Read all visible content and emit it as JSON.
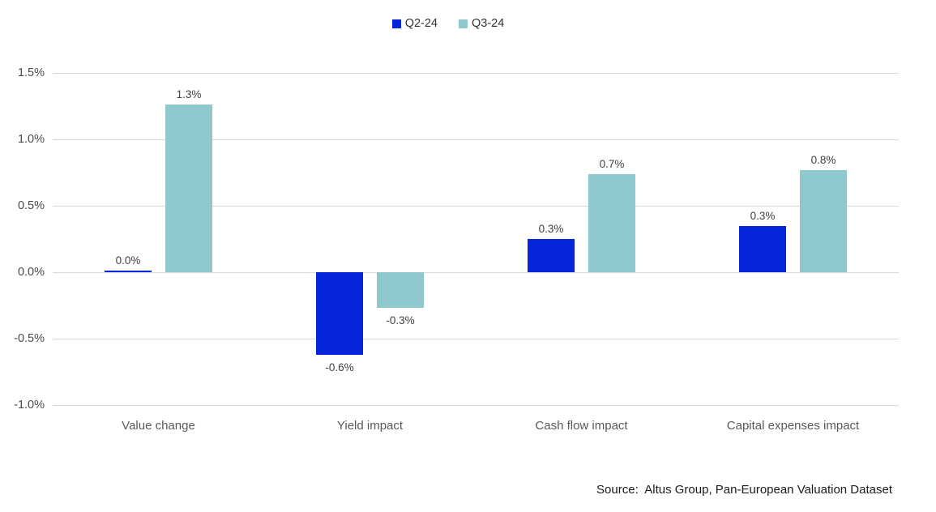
{
  "legend": {
    "items": [
      {
        "label": "Q2-24",
        "color": "#0826d9"
      },
      {
        "label": "Q3-24",
        "color": "#8fc9ce"
      }
    ]
  },
  "chart_data": {
    "type": "bar",
    "title": "",
    "categories": [
      "Value change",
      "Yield impact",
      "Cash flow impact",
      "Capital expenses impact"
    ],
    "series": [
      {
        "name": "Q2-24",
        "color": "#0826d9",
        "values": [
          0.0,
          -0.6,
          0.3,
          0.3
        ],
        "values_precise": [
          0.0,
          -0.62,
          0.25,
          0.35
        ],
        "data_labels": [
          "0.0%",
          "-0.6%",
          "0.3%",
          "0.3%"
        ]
      },
      {
        "name": "Q3-24",
        "color": "#8fc9ce",
        "values": [
          1.3,
          -0.3,
          0.7,
          0.8
        ],
        "values_precise": [
          1.26,
          -0.27,
          0.74,
          0.77
        ],
        "data_labels": [
          "1.3%",
          "-0.3%",
          "0.7%",
          "0.8%"
        ]
      }
    ],
    "y_axis": {
      "min": -1.0,
      "max": 1.5,
      "tick_step": 0.5,
      "tick_labels": [
        "1.5%",
        "1.0%",
        "0.5%",
        "0.0%",
        "-0.5%",
        "-1.0%"
      ],
      "unit": "%"
    },
    "xlabel": "",
    "ylabel": "",
    "grid": true,
    "legend_position": "top-center",
    "data_label_position": "outside-end"
  },
  "source": {
    "text": "Source:  Altus Group, Pan-European Valuation Dataset"
  },
  "colors": {
    "q2_bar": "#0826d9",
    "q3_bar": "#8fc9ce",
    "gridline": "#d9d9d9",
    "axis_text": "#4a4a4a",
    "data_label_text": "#404040",
    "category_text": "#595959",
    "source_text": "#1a1a1a",
    "background": "#ffffff"
  }
}
